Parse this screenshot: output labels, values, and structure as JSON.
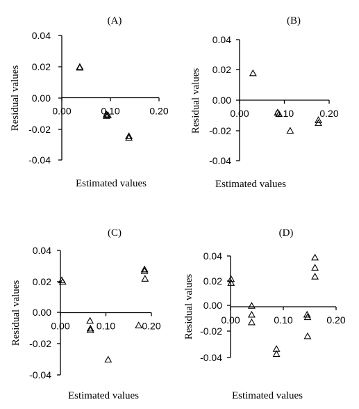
{
  "chart_data": [
    {
      "type": "scatter",
      "title": "(A)",
      "xlabel": "Estimated values",
      "ylabel": "Residual values",
      "xlim": [
        0,
        0.2
      ],
      "ylim": [
        -0.04,
        0.04
      ],
      "x_ticks": [
        "0.00",
        "0.10",
        "0.20"
      ],
      "y_ticks": [
        "0.04",
        "0.02",
        "0.00",
        "-0.02",
        "-0.04"
      ],
      "grid": false,
      "series": [
        {
          "marker": "triangle",
          "points": [
            [
              0.037,
              0.02
            ],
            [
              0.037,
              0.0195
            ],
            [
              0.092,
              -0.0105
            ],
            [
              0.092,
              -0.0115
            ],
            [
              0.095,
              -0.011
            ],
            [
              0.138,
              -0.0245
            ],
            [
              0.138,
              -0.0255
            ]
          ]
        }
      ]
    },
    {
      "type": "scatter",
      "title": "(B)",
      "xlabel": "Estimated values",
      "ylabel": "Residual values",
      "xlim": [
        0,
        0.2
      ],
      "ylim": [
        -0.04,
        0.04
      ],
      "x_ticks": [
        "0.00",
        "0.10",
        "0.20"
      ],
      "y_ticks": [
        "0.04",
        "0.02",
        "0.00",
        "-0.02",
        "-0.04"
      ],
      "grid": false,
      "series": [
        {
          "marker": "triangle",
          "points": [
            [
              0.03,
              0.018
            ],
            [
              0.085,
              -0.008
            ],
            [
              0.088,
              -0.009
            ],
            [
              0.113,
              -0.02
            ],
            [
              0.176,
              -0.013
            ],
            [
              0.176,
              -0.015
            ]
          ]
        }
      ]
    },
    {
      "type": "scatter",
      "title": "(C)",
      "xlabel": "Estimated values",
      "ylabel": "Residual values",
      "xlim": [
        0,
        0.2
      ],
      "ylim": [
        -0.04,
        0.04
      ],
      "x_ticks": [
        "0.00",
        "0.10",
        "0.20"
      ],
      "y_ticks": [
        "0.04",
        "0.02",
        "0.00",
        "-0.02",
        "-0.04"
      ],
      "grid": false,
      "series": [
        {
          "marker": "triangle",
          "points": [
            [
              0.003,
              0.021
            ],
            [
              0.005,
              0.02
            ],
            [
              0.065,
              -0.005
            ],
            [
              0.066,
              -0.01
            ],
            [
              0.066,
              -0.011
            ],
            [
              0.105,
              -0.03
            ],
            [
              0.172,
              -0.008
            ],
            [
              0.185,
              0.028
            ],
            [
              0.185,
              0.027
            ],
            [
              0.186,
              0.022
            ]
          ]
        }
      ]
    },
    {
      "type": "scatter",
      "title": "(D)",
      "xlabel": "Estimated values",
      "ylabel": "Residual values",
      "xlim": [
        0,
        0.2
      ],
      "ylim": [
        -0.04,
        0.04
      ],
      "x_ticks": [
        "0.00",
        "0.10",
        "0.20"
      ],
      "y_ticks": [
        "0.04",
        "0.02",
        "0.00",
        "-0.02",
        "-0.04"
      ],
      "grid": false,
      "series": [
        {
          "marker": "triangle",
          "points": [
            [
              0.001,
              0.022
            ],
            [
              0.001,
              0.019
            ],
            [
              0.04,
              0.001
            ],
            [
              0.04,
              -0.006
            ],
            [
              0.04,
              -0.012
            ],
            [
              0.087,
              -0.033
            ],
            [
              0.087,
              -0.037
            ],
            [
              0.145,
              -0.006
            ],
            [
              0.146,
              -0.008
            ],
            [
              0.146,
              -0.023
            ],
            [
              0.16,
              0.039
            ],
            [
              0.16,
              0.031
            ],
            [
              0.16,
              0.024
            ]
          ]
        }
      ]
    }
  ]
}
